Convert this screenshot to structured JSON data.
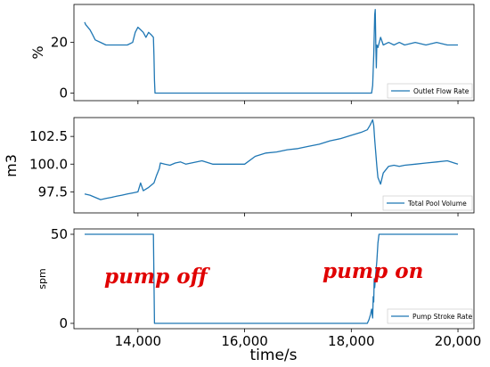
{
  "chart_data": [
    {
      "type": "line",
      "ylabel": "%",
      "xlabel": "",
      "xlim": [
        12800,
        20300
      ],
      "ylim": [
        -3,
        35
      ],
      "yticks": [
        0,
        20
      ],
      "ytick_labels": [
        "0",
        "20"
      ],
      "grid": false,
      "legend_placement": "bottom-right",
      "series": [
        {
          "name": "Outlet Flow Rate",
          "color": "#1f77b4",
          "x": [
            13000,
            13020,
            13060,
            13100,
            13150,
            13200,
            13300,
            13400,
            13500,
            13600,
            13700,
            13800,
            13900,
            13950,
            14000,
            14050,
            14100,
            14150,
            14200,
            14250,
            14290,
            14300,
            14310,
            14320,
            14500,
            15000,
            15500,
            16000,
            16500,
            17000,
            17500,
            18000,
            18300,
            18350,
            18380,
            18400,
            18420,
            18440,
            18450,
            18460,
            18470,
            18480,
            18500,
            18550,
            18600,
            18700,
            18800,
            18900,
            19000,
            19200,
            19400,
            19600,
            19800,
            20000
          ],
          "y": [
            28,
            27,
            26,
            25,
            23,
            21,
            20,
            19,
            19,
            19,
            19,
            19,
            20,
            24,
            26,
            25,
            24,
            22,
            24,
            23,
            22,
            15,
            5,
            0,
            0,
            0,
            0,
            0,
            0,
            0,
            0,
            0,
            0,
            0,
            0,
            3,
            15,
            31,
            33,
            20,
            10,
            19,
            18,
            22,
            19,
            20,
            19,
            20,
            19,
            20,
            19,
            20,
            19,
            19
          ]
        }
      ]
    },
    {
      "type": "line",
      "ylabel": "m3",
      "xlabel": "",
      "xlim": [
        12800,
        20300
      ],
      "ylim": [
        95.6,
        104.2
      ],
      "yticks": [
        97.5,
        100.0,
        102.5
      ],
      "ytick_labels": [
        "97.5",
        "100.0",
        "102.5"
      ],
      "grid": false,
      "legend_placement": "bottom-right",
      "series": [
        {
          "name": "Total Pool Volume",
          "color": "#1f77b4",
          "x": [
            13000,
            13100,
            13200,
            13300,
            13400,
            13500,
            13600,
            13700,
            13800,
            13900,
            14000,
            14050,
            14100,
            14200,
            14300,
            14350,
            14400,
            14420,
            14500,
            14600,
            14700,
            14800,
            14900,
            15000,
            15100,
            15200,
            15400,
            15600,
            15800,
            16000,
            16200,
            16400,
            16600,
            16800,
            17000,
            17200,
            17400,
            17600,
            17800,
            18000,
            18200,
            18300,
            18350,
            18400,
            18420,
            18440,
            18460,
            18480,
            18500,
            18550,
            18600,
            18700,
            18800,
            18900,
            19000,
            19200,
            19400,
            19600,
            19800,
            20000
          ],
          "y": [
            97.3,
            97.2,
            97.0,
            96.8,
            96.9,
            97.0,
            97.1,
            97.2,
            97.3,
            97.4,
            97.5,
            98.3,
            97.6,
            97.9,
            98.3,
            99.0,
            99.6,
            100.1,
            100.0,
            99.9,
            100.1,
            100.2,
            100.0,
            100.1,
            100.2,
            100.3,
            100.0,
            100.0,
            100.0,
            100.0,
            100.7,
            101.0,
            101.1,
            101.3,
            101.4,
            101.6,
            101.8,
            102.1,
            102.3,
            102.6,
            102.9,
            103.1,
            103.5,
            104.0,
            103.5,
            102.2,
            101.0,
            99.8,
            98.8,
            98.2,
            99.2,
            99.8,
            99.9,
            99.8,
            99.9,
            100.0,
            100.1,
            100.2,
            100.3,
            100.0
          ]
        }
      ]
    },
    {
      "type": "line",
      "ylabel": "spm",
      "xlabel": "time/s",
      "xlim": [
        12800,
        20300
      ],
      "ylim": [
        -3,
        53
      ],
      "yticks": [
        0,
        50
      ],
      "ytick_labels": [
        "0",
        "50"
      ],
      "xticks": [
        14000,
        16000,
        18000,
        20000
      ],
      "xtick_labels": [
        "14,000",
        "16,000",
        "18,000",
        "20,000"
      ],
      "grid": false,
      "legend_placement": "bottom-right",
      "annotations": [
        "pump off",
        "pump on"
      ],
      "series": [
        {
          "name": "Pump Stroke Rate",
          "color": "#1f77b4",
          "x": [
            13000,
            13500,
            14000,
            14280,
            14290,
            14300,
            14310,
            15000,
            16000,
            17000,
            18000,
            18300,
            18330,
            18360,
            18380,
            18400,
            18410,
            18420,
            18430,
            18440,
            18460,
            18480,
            18500,
            18520,
            18550,
            18600,
            19000,
            19500,
            20000
          ],
          "y": [
            50,
            50,
            50,
            50,
            50,
            25,
            0,
            0,
            0,
            0,
            0,
            0,
            2,
            5,
            8,
            3,
            15,
            12,
            25,
            20,
            28,
            35,
            45,
            50,
            50,
            50,
            50,
            50,
            50
          ]
        }
      ]
    }
  ]
}
